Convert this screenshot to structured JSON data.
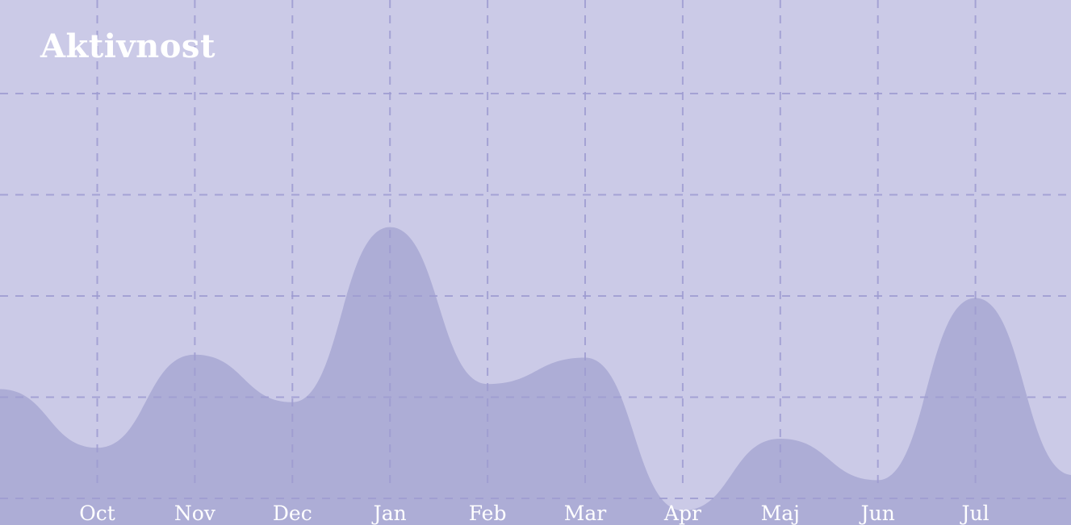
{
  "chart_data": {
    "type": "area",
    "title": "Aktivnost",
    "xlabel": "",
    "ylabel": "",
    "categories": [
      "Oct",
      "Nov",
      "Dec",
      "Jan",
      "Feb",
      "Mar",
      "Apr",
      "Maj",
      "Jun",
      "Jul"
    ],
    "series": [
      {
        "x": [
          -1,
          0,
          1,
          2,
          3,
          4,
          5,
          6,
          7,
          8,
          9,
          10
        ],
        "values": [
          1.08,
          0.5,
          1.42,
          0.95,
          2.68,
          1.13,
          1.39,
          -0.12,
          0.59,
          0.18,
          1.98,
          0.23
        ]
      }
    ],
    "ylim": [
      -1.0,
      4.0
    ],
    "grid": true,
    "legend": "none",
    "colors": {
      "background": "#cbcae7",
      "area": "#adadd6",
      "grid": "#9d9bd0",
      "text": "#ffffff"
    }
  }
}
